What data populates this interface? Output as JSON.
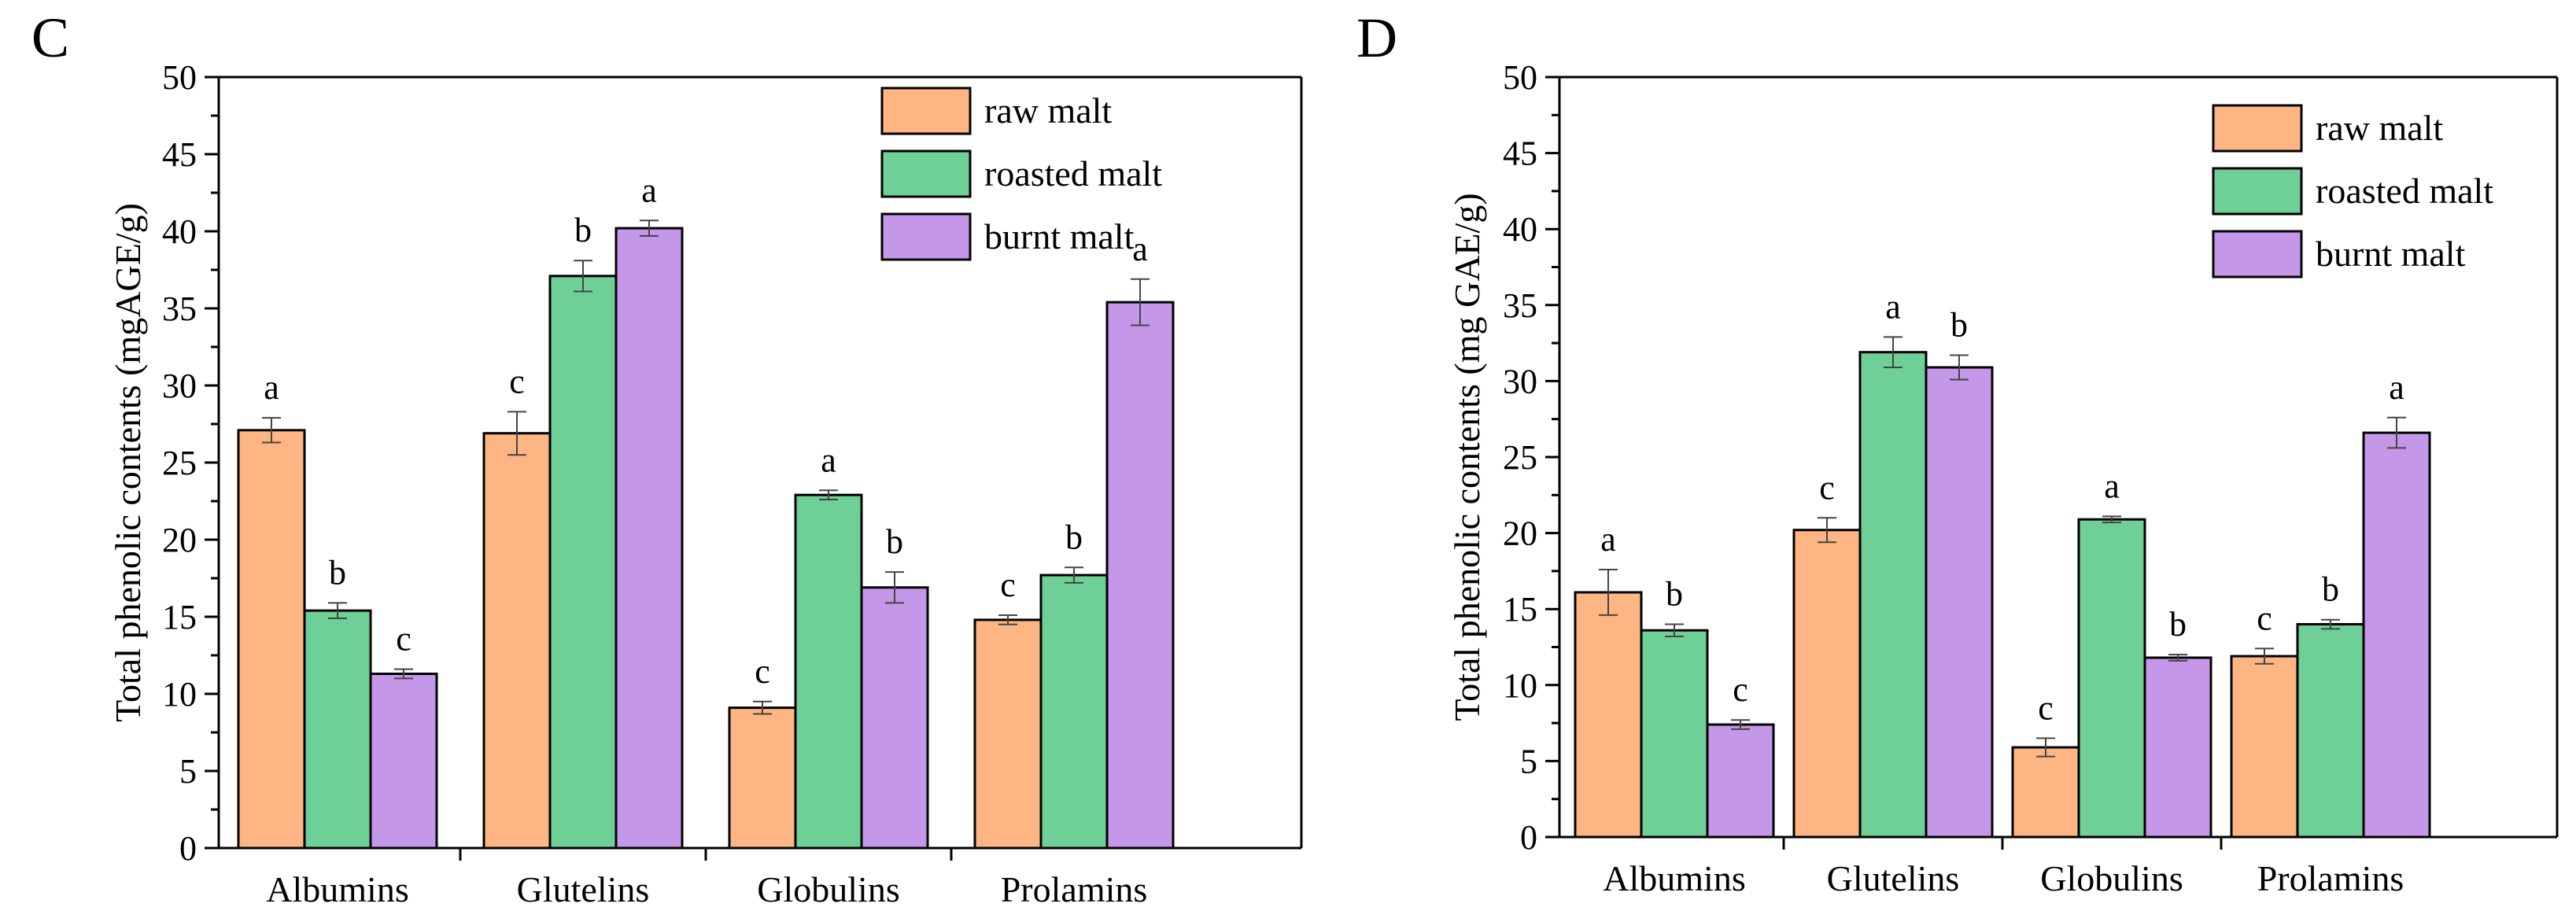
{
  "chart_data": [
    {
      "type": "bar",
      "panel_label": "C",
      "title": "",
      "xlabel": "",
      "ylabel": "Total phenolic contents (mgAGE/g)",
      "ylim": [
        0,
        50
      ],
      "yticks": [
        0,
        5,
        10,
        15,
        20,
        25,
        30,
        35,
        40,
        45,
        50
      ],
      "grid": false,
      "legend_position": "top-right",
      "categories": [
        "Albumins",
        "Glutelins",
        "Globulins",
        "Prolamins"
      ],
      "series": [
        {
          "name": "raw malt",
          "color": "#FDB683",
          "values": [
            27.1,
            26.9,
            9.1,
            14.8
          ],
          "errors": [
            0.8,
            1.4,
            0.4,
            0.3
          ],
          "letters": [
            "a",
            "c",
            "c",
            "c"
          ]
        },
        {
          "name": "roasted malt",
          "color": "#6ED096",
          "values": [
            15.4,
            37.1,
            22.9,
            17.7
          ],
          "errors": [
            0.5,
            1.0,
            0.3,
            0.5
          ],
          "letters": [
            "b",
            "b",
            "a",
            "b"
          ]
        },
        {
          "name": "burnt malt",
          "color": "#C497E8",
          "values": [
            11.3,
            40.2,
            16.9,
            35.4
          ],
          "errors": [
            0.3,
            0.5,
            1.0,
            1.5
          ],
          "letters": [
            "c",
            "a",
            "b",
            "a"
          ]
        }
      ]
    },
    {
      "type": "bar",
      "panel_label": "D",
      "title": "",
      "xlabel": "",
      "ylabel": "Total phenolic contents (mg GAE/g)",
      "ylim": [
        0,
        50
      ],
      "yticks": [
        0,
        5,
        10,
        15,
        20,
        25,
        30,
        35,
        40,
        45,
        50
      ],
      "grid": false,
      "legend_position": "top-right",
      "categories": [
        "Albumins",
        "Glutelins",
        "Globulins",
        "Prolamins"
      ],
      "series": [
        {
          "name": "raw malt",
          "color": "#FDB683",
          "values": [
            16.1,
            20.2,
            5.9,
            11.9
          ],
          "errors": [
            1.5,
            0.8,
            0.6,
            0.5
          ],
          "letters": [
            "a",
            "c",
            "c",
            "c"
          ]
        },
        {
          "name": "roasted malt",
          "color": "#6ED096",
          "values": [
            13.6,
            31.9,
            20.9,
            14.0
          ],
          "errors": [
            0.4,
            1.0,
            0.2,
            0.3
          ],
          "letters": [
            "b",
            "a",
            "a",
            "b"
          ]
        },
        {
          "name": "burnt malt",
          "color": "#C497E8",
          "values": [
            7.4,
            30.9,
            11.8,
            26.6
          ],
          "errors": [
            0.3,
            0.8,
            0.2,
            1.0
          ],
          "letters": [
            "c",
            "b",
            "b",
            "a"
          ]
        }
      ]
    }
  ]
}
